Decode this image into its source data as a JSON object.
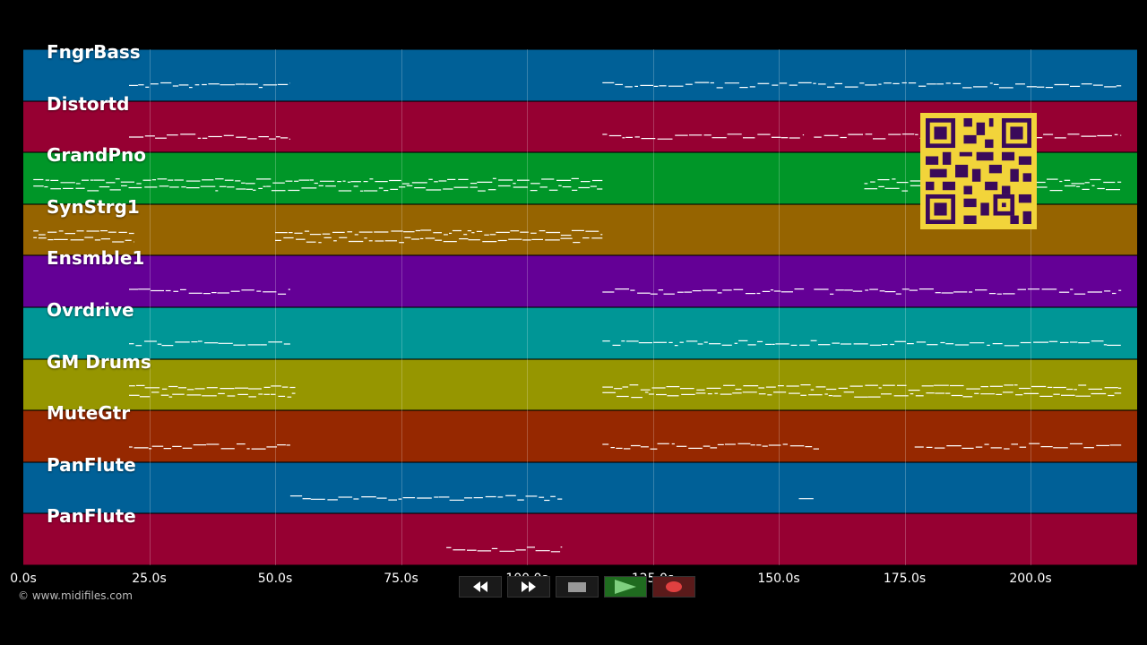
{
  "tracks": [
    {
      "name": "FngrBass",
      "color": "#006097"
    },
    {
      "name": "Distortd",
      "color": "#960032"
    },
    {
      "name": "GrandPno",
      "color": "#009628"
    },
    {
      "name": "SynStrg1",
      "color": "#966400"
    },
    {
      "name": "Ensmble1",
      "color": "#640096"
    },
    {
      "name": "Ovrdrive",
      "color": "#009696"
    },
    {
      "name": "GM Drums",
      "color": "#969600"
    },
    {
      "name": "MuteGtr",
      "color": "#962800"
    },
    {
      "name": "PanFlute",
      "color": "#006097"
    },
    {
      "name": "PanFlute",
      "color": "#960032"
    }
  ],
  "timeline": {
    "seconds_span": 220,
    "ticks": [
      {
        "label": "0.0s",
        "t": 0
      },
      {
        "label": "25.0s",
        "t": 25
      },
      {
        "label": "50.0s",
        "t": 50
      },
      {
        "label": "75.0s",
        "t": 75
      },
      {
        "label": "100.0s",
        "t": 100
      },
      {
        "label": "125.0s",
        "t": 125
      },
      {
        "label": "150.0s",
        "t": 150
      },
      {
        "label": "175.0s",
        "t": 175
      },
      {
        "label": "200.0s",
        "t": 200
      }
    ]
  },
  "copyright": "© www.midifiles.com",
  "transport": {
    "rewind_icon": "rewind-icon",
    "forward_icon": "fast-forward-icon",
    "stop_icon": "stop-icon",
    "play_icon": "play-icon",
    "record_icon": "record-icon"
  },
  "note_segments": [
    {
      "track": 0,
      "start": 21,
      "end": 53
    },
    {
      "track": 0,
      "start": 115,
      "end": 218
    },
    {
      "track": 1,
      "start": 21,
      "end": 53
    },
    {
      "track": 1,
      "start": 115,
      "end": 155
    },
    {
      "track": 1,
      "start": 157,
      "end": 218
    },
    {
      "track": 2,
      "start": 2,
      "end": 115
    },
    {
      "track": 2,
      "start": 167,
      "end": 218
    },
    {
      "track": 3,
      "start": 2,
      "end": 22
    },
    {
      "track": 3,
      "start": 50,
      "end": 115
    },
    {
      "track": 4,
      "start": 21,
      "end": 53
    },
    {
      "track": 4,
      "start": 115,
      "end": 155
    },
    {
      "track": 4,
      "start": 157,
      "end": 218
    },
    {
      "track": 5,
      "start": 21,
      "end": 53
    },
    {
      "track": 5,
      "start": 115,
      "end": 218
    },
    {
      "track": 6,
      "start": 21,
      "end": 54
    },
    {
      "track": 6,
      "start": 115,
      "end": 218
    },
    {
      "track": 7,
      "start": 21,
      "end": 53
    },
    {
      "track": 7,
      "start": 115,
      "end": 158
    },
    {
      "track": 7,
      "start": 177,
      "end": 218
    },
    {
      "track": 8,
      "start": 53,
      "end": 107
    },
    {
      "track": 8,
      "start": 154,
      "end": 157
    },
    {
      "track": 9,
      "start": 84,
      "end": 107
    }
  ]
}
